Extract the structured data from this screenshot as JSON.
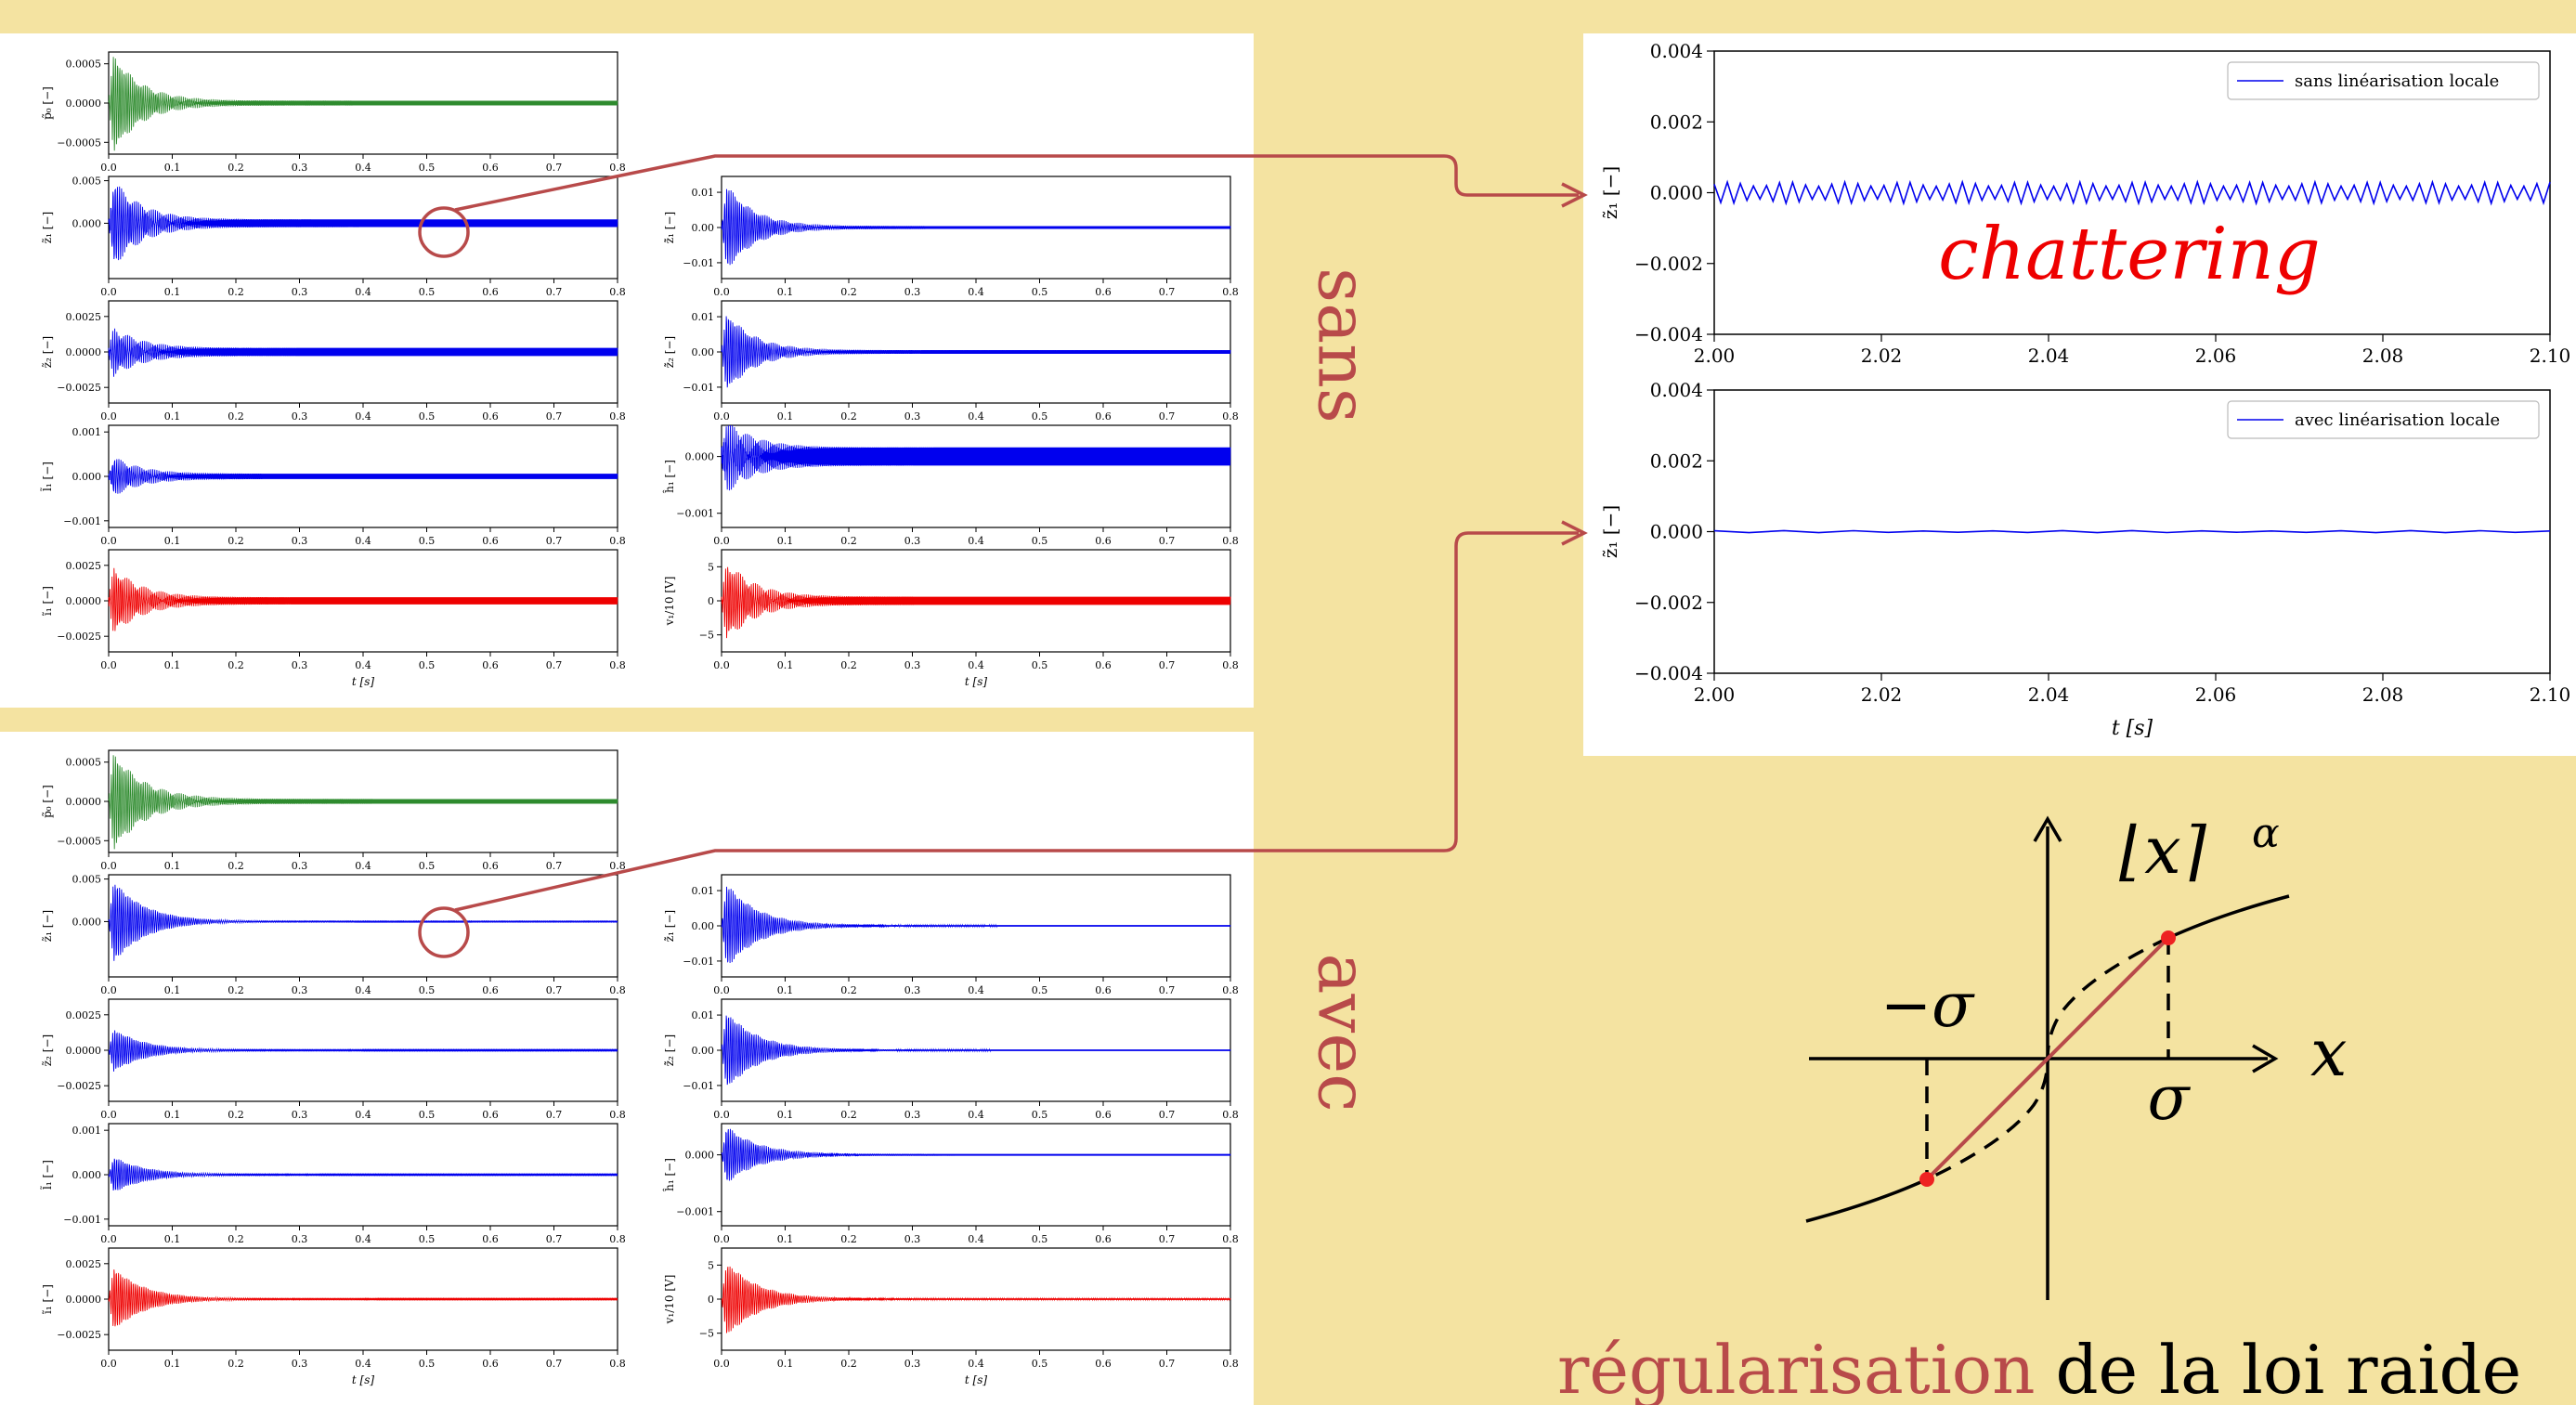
{
  "labels": {
    "sans": "sans",
    "avec": "avec",
    "chattering": "chattering",
    "reg_red": "régularisation",
    "reg_black": "de la loi raide"
  },
  "sigma_diagram": {
    "pow_label": "⌊x⌉",
    "alpha": "α",
    "x_label": "x",
    "sigma": "σ",
    "neg_sigma": "−σ"
  },
  "colors": {
    "background": "#f4e3a1",
    "green": "#2e8b2e",
    "blue": "#0000ee",
    "red": "#ee0000",
    "accent": "#b84a4a"
  },
  "small_grid": {
    "x_ticks": [
      "0.0",
      "0.1",
      "0.2",
      "0.3",
      "0.4",
      "0.5",
      "0.6",
      "0.7",
      "0.8"
    ],
    "xlabel": "t [s]",
    "xlim": [
      0,
      0.8
    ],
    "panels": [
      {
        "id": "p_hat",
        "col": 0,
        "row": 0,
        "ylabel": "p̃₀ [−]",
        "ticks": [
          "0.0005",
          "0.0000",
          "−0.0005"
        ],
        "tick_vals": [
          0.0005,
          0,
          -0.0005
        ],
        "ylim": [
          -0.00065,
          0.00065
        ],
        "color": "green",
        "amp": 0.0006,
        "tail_sans": 3e-05,
        "tail_avec": 3e-05
      },
      {
        "id": "z1",
        "col": 0,
        "row": 1,
        "ylabel": "z̃₁ [−]",
        "ticks": [
          "0.005",
          "0.000"
        ],
        "tick_vals": [
          0.005,
          0
        ],
        "ylim": [
          -0.0065,
          0.0055
        ],
        "color": "blue",
        "amp": 0.0048,
        "tail_sans": 0.00045,
        "tail_avec": 4e-05
      },
      {
        "id": "z2",
        "col": 0,
        "row": 2,
        "ylabel": "z̃₂ [−]",
        "ticks": [
          "0.0025",
          "0.0000",
          "−0.0025"
        ],
        "tick_vals": [
          0.0025,
          0,
          -0.0025
        ],
        "ylim": [
          -0.0036,
          0.0036
        ],
        "color": "blue",
        "amp": 0.0015,
        "tail_sans": 0.00028,
        "tail_avec": 3e-05
      },
      {
        "id": "l1",
        "col": 0,
        "row": 3,
        "ylabel": "l̃₁ [−]",
        "ticks": [
          "0.001",
          "0.000",
          "−0.001"
        ],
        "tick_vals": [
          0.001,
          0,
          -0.001
        ],
        "ylim": [
          -0.00115,
          0.00115
        ],
        "color": "blue",
        "amp": 0.0004,
        "tail_sans": 6e-05,
        "tail_avec": 1e-05
      },
      {
        "id": "i1",
        "col": 0,
        "row": 4,
        "ylabel": "ĩ₁ [−]",
        "ticks": [
          "0.0025",
          "0.0000",
          "−0.0025"
        ],
        "tick_vals": [
          0.0025,
          0,
          -0.0025
        ],
        "ylim": [
          -0.0036,
          0.0036
        ],
        "color": "red",
        "amp": 0.0022,
        "tail_sans": 0.00025,
        "tail_avec": 3e-05
      },
      {
        "id": "dz1",
        "col": 1,
        "row": 1,
        "ylabel": "ż̃₁ [−]",
        "ticks": [
          "0.01",
          "0.00",
          "−0.01"
        ],
        "tick_vals": [
          0.01,
          0,
          -0.01
        ],
        "ylim": [
          -0.0145,
          0.0145
        ],
        "color": "blue",
        "amp": 0.012,
        "tail_sans": 0.0004,
        "tail_avec": 0.0002
      },
      {
        "id": "dz2",
        "col": 1,
        "row": 2,
        "ylabel": "ż̃₂ [−]",
        "ticks": [
          "0.01",
          "0.00",
          "−0.01"
        ],
        "tick_vals": [
          0.01,
          0,
          -0.01
        ],
        "ylim": [
          -0.0145,
          0.0145
        ],
        "color": "blue",
        "amp": 0.011,
        "tail_sans": 0.0005,
        "tail_avec": 0.0002
      },
      {
        "id": "h1",
        "col": 1,
        "row": 3,
        "ylabel": "ĥ₁ [−]",
        "ticks": [
          "0.000",
          "−0.001"
        ],
        "tick_vals": [
          0,
          -0.001
        ],
        "ylim": [
          -0.00125,
          0.00055
        ],
        "color": "blue",
        "amp": 0.0005,
        "tail_sans": 0.00016,
        "tail_avec": 1.5e-05
      },
      {
        "id": "v1",
        "col": 1,
        "row": 4,
        "ylabel": "v₁/10 [V]",
        "ticks": [
          "5",
          "0",
          "−5"
        ],
        "tick_vals": [
          5,
          0,
          -5
        ],
        "ylim": [
          -7.5,
          7.5
        ],
        "color": "red",
        "amp": 5.5,
        "tail_sans": 0.6,
        "tail_avec": 0.1
      }
    ]
  },
  "chart_data": [
    {
      "type": "line",
      "title": "",
      "xlabel": "",
      "ylabel": "z̃₁ [−]",
      "xlim": [
        2.0,
        2.1
      ],
      "ylim": [
        -0.004,
        0.004
      ],
      "x_ticks": [
        "2.00",
        "2.02",
        "2.04",
        "2.06",
        "2.08",
        "2.10"
      ],
      "y_ticks": [
        "0.004",
        "0.002",
        "0.000",
        "−0.002",
        "−0.004"
      ],
      "legend": "top-right",
      "series": [
        {
          "name": "sans linéarisation locale",
          "amplitude": 0.0003,
          "cycles": 64,
          "color": "#0000ee"
        }
      ]
    },
    {
      "type": "line",
      "title": "",
      "xlabel": "t [s]",
      "ylabel": "z̃₁ [−]",
      "xlim": [
        2.0,
        2.1
      ],
      "ylim": [
        -0.004,
        0.004
      ],
      "x_ticks": [
        "2.00",
        "2.02",
        "2.04",
        "2.06",
        "2.08",
        "2.10"
      ],
      "y_ticks": [
        "0.004",
        "0.002",
        "0.000",
        "−0.002",
        "−0.004"
      ],
      "legend": "top-right",
      "series": [
        {
          "name": "avec linéarisation locale",
          "amplitude": 3e-05,
          "cycles": 12,
          "color": "#0000ee"
        }
      ]
    }
  ]
}
